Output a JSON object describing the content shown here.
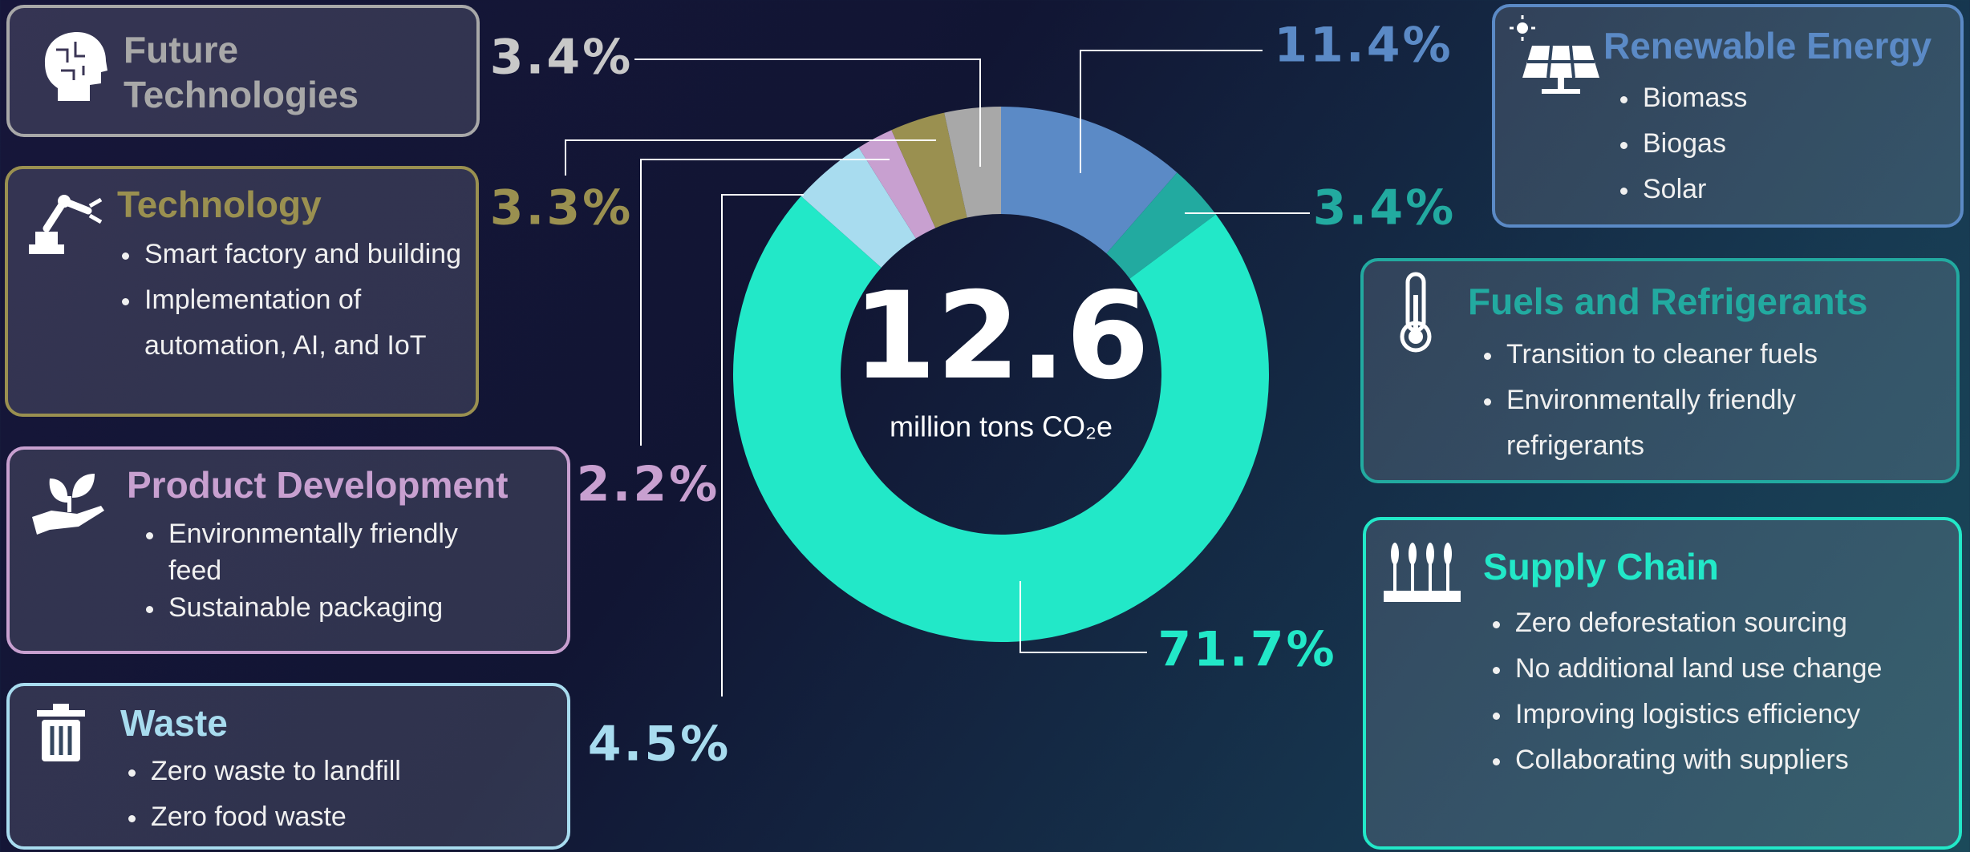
{
  "chart_data": {
    "type": "donut",
    "total": 12.6,
    "total_label": "million tons CO₂e",
    "categories": [
      "Renewable Energy",
      "Fuels and Refrigerants",
      "Supply Chain",
      "Waste",
      "Product Development",
      "Technology",
      "Future Technologies"
    ],
    "values": [
      11.4,
      3.4,
      71.7,
      4.5,
      2.2,
      3.3,
      3.4
    ],
    "value_labels": [
      "11.4%",
      "3.4%",
      "71.7%",
      "4.5%",
      "2.2%",
      "3.3%",
      "3.4%"
    ],
    "colors": [
      "#5b8ac6",
      "#22aaa0",
      "#22e8c8",
      "#a8dcef",
      "#c8a0d0",
      "#9a9050",
      "#a8a8a8"
    ],
    "details": [
      [
        "Biomass",
        "Biogas",
        "Solar"
      ],
      [
        "Transition to cleaner fuels",
        "Environmentally friendly refrigerants"
      ],
      [
        "Zero deforestation sourcing",
        "No additional land use change",
        "Improving logistics efficiency",
        "Collaborating with suppliers"
      ],
      [
        "Zero waste to landfill",
        "Zero food waste"
      ],
      [
        "Environmentally friendly feed",
        "Sustainable packaging"
      ],
      [
        "Smart factory and building",
        "Implementation of automation, AI, and IoT"
      ],
      []
    ]
  }
}
